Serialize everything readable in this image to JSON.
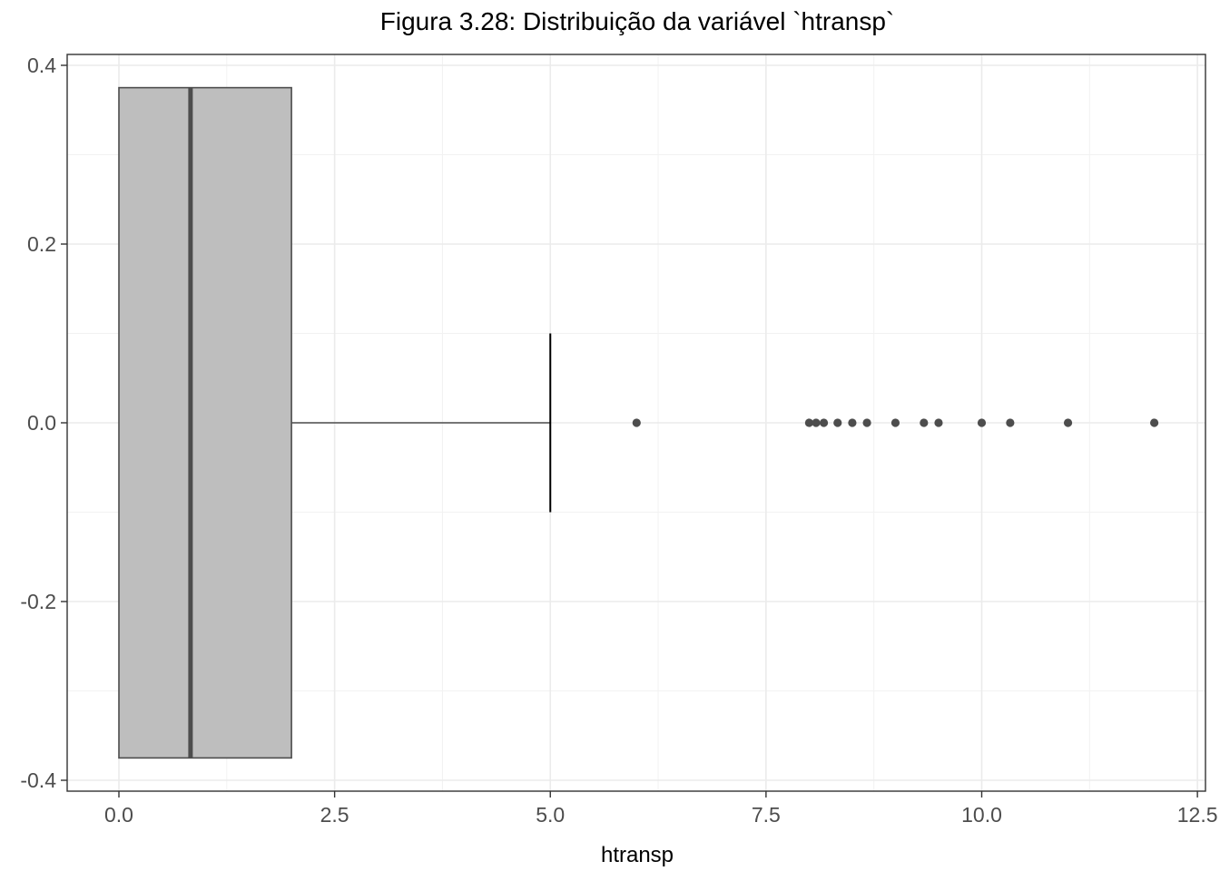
{
  "chart_data": {
    "type": "boxplot",
    "title": "Figura 3.28: Distribuição da variável `htransp`",
    "xlabel": "htransp",
    "ylabel": "",
    "xlim": [
      -0.6,
      12.55
    ],
    "ylim": [
      -0.41,
      0.415
    ],
    "x_ticks": [
      0.0,
      2.5,
      5.0,
      7.5,
      10.0,
      12.5
    ],
    "x_tick_labels": [
      "0.0",
      "2.5",
      "5.0",
      "7.5",
      "10.0",
      "12.5"
    ],
    "y_ticks": [
      0.4,
      0.2,
      0.0,
      -0.2,
      -0.4
    ],
    "y_tick_labels": [
      "0.4",
      "0.2",
      "0.0",
      "-0.2",
      "-0.4"
    ],
    "grid": true,
    "box": {
      "min": 0.0,
      "q1": 0.0,
      "median": 0.83,
      "q3": 2.0,
      "whisker_high": 5.0,
      "box_half_height": 0.375,
      "whisker_cap_half_height": 0.1,
      "center_y": 0.0,
      "fill": "#bebebe",
      "stroke": "#4d4d4d"
    },
    "outliers": [
      6.0,
      8.0,
      8.08,
      8.17,
      8.33,
      8.5,
      8.67,
      9.0,
      9.33,
      9.5,
      10.0,
      10.33,
      11.0,
      12.0
    ],
    "outlier_color": "#4d4d4d",
    "whisker_color": "#000000"
  }
}
